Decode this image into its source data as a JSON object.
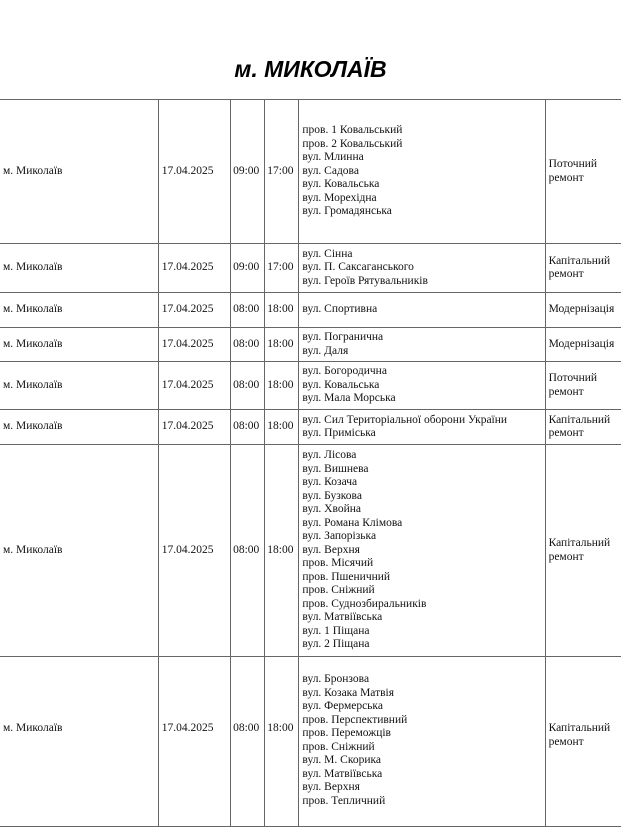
{
  "title": "м. МИКОЛАЇВ",
  "rows": [
    {
      "city": "м. Миколаїв",
      "date": "17.04.2025",
      "start": "09:00",
      "end": "17:00",
      "streets": [
        "пров. 1 Ковальський",
        "пров. 2 Ковальський",
        "вул. Млинна",
        "вул. Садова",
        "вул. Ковальська",
        "вул. Морехідна",
        "вул. Громадянська"
      ],
      "type": "Поточний ремонт"
    },
    {
      "city": "м. Миколаїв",
      "date": "17.04.2025",
      "start": "09:00",
      "end": "17:00",
      "streets": [
        "вул. Сінна",
        "вул. П. Саксаганського",
        "вул. Героїв Рятувальників"
      ],
      "type": "Капітальний ремонт"
    },
    {
      "city": "м. Миколаїв",
      "date": "17.04.2025",
      "start": "08:00",
      "end": "18:00",
      "streets": [
        "вул. Спортивна"
      ],
      "type": "Модернізація"
    },
    {
      "city": "м. Миколаїв",
      "date": "17.04.2025",
      "start": "08:00",
      "end": "18:00",
      "streets": [
        "вул. Погранична",
        "вул. Даля"
      ],
      "type": "Модернізація"
    },
    {
      "city": "м. Миколаїв",
      "date": "17.04.2025",
      "start": "08:00",
      "end": "18:00",
      "streets": [
        "вул. Богородична",
        "вул. Ковальська",
        "вул. Мала Морська"
      ],
      "type": "Поточний ремонт"
    },
    {
      "city": "м. Миколаїв",
      "date": "17.04.2025",
      "start": "08:00",
      "end": "18:00",
      "streets": [
        "вул. Сил Територіальної оборони України",
        "вул. Приміська"
      ],
      "type": "Капітальний ремонт"
    },
    {
      "city": "м. Миколаїв",
      "date": "17.04.2025",
      "start": "08:00",
      "end": "18:00",
      "streets": [
        "вул. Лісова",
        "вул. Вишнева",
        "вул. Козача",
        "вул. Бузкова",
        "вул. Хвойна",
        "вул. Романа Клімова",
        "вул. Запорізька",
        "вул. Верхня",
        "пров. Місячий",
        "пров. Пшеничний",
        "пров. Сніжний",
        "пров. Суднозбиральників",
        "вул. Матвіївська",
        "вул. 1 Піщана",
        "вул. 2 Піщана"
      ],
      "type": "Капітальний ремонт"
    },
    {
      "city": "м. Миколаїв",
      "date": "17.04.2025",
      "start": "08:00",
      "end": "18:00",
      "streets": [
        "вул. Бронзова",
        "вул. Козака Матвія",
        "вул. Фермерська",
        "пров. Перспективний",
        "пров. Переможців",
        "пров. Сніжний",
        "вул. М. Скорика",
        "вул. Матвіївська",
        "вул. Верхня",
        "пров. Тепличний"
      ],
      "type": "Капітальний ремонт"
    }
  ]
}
